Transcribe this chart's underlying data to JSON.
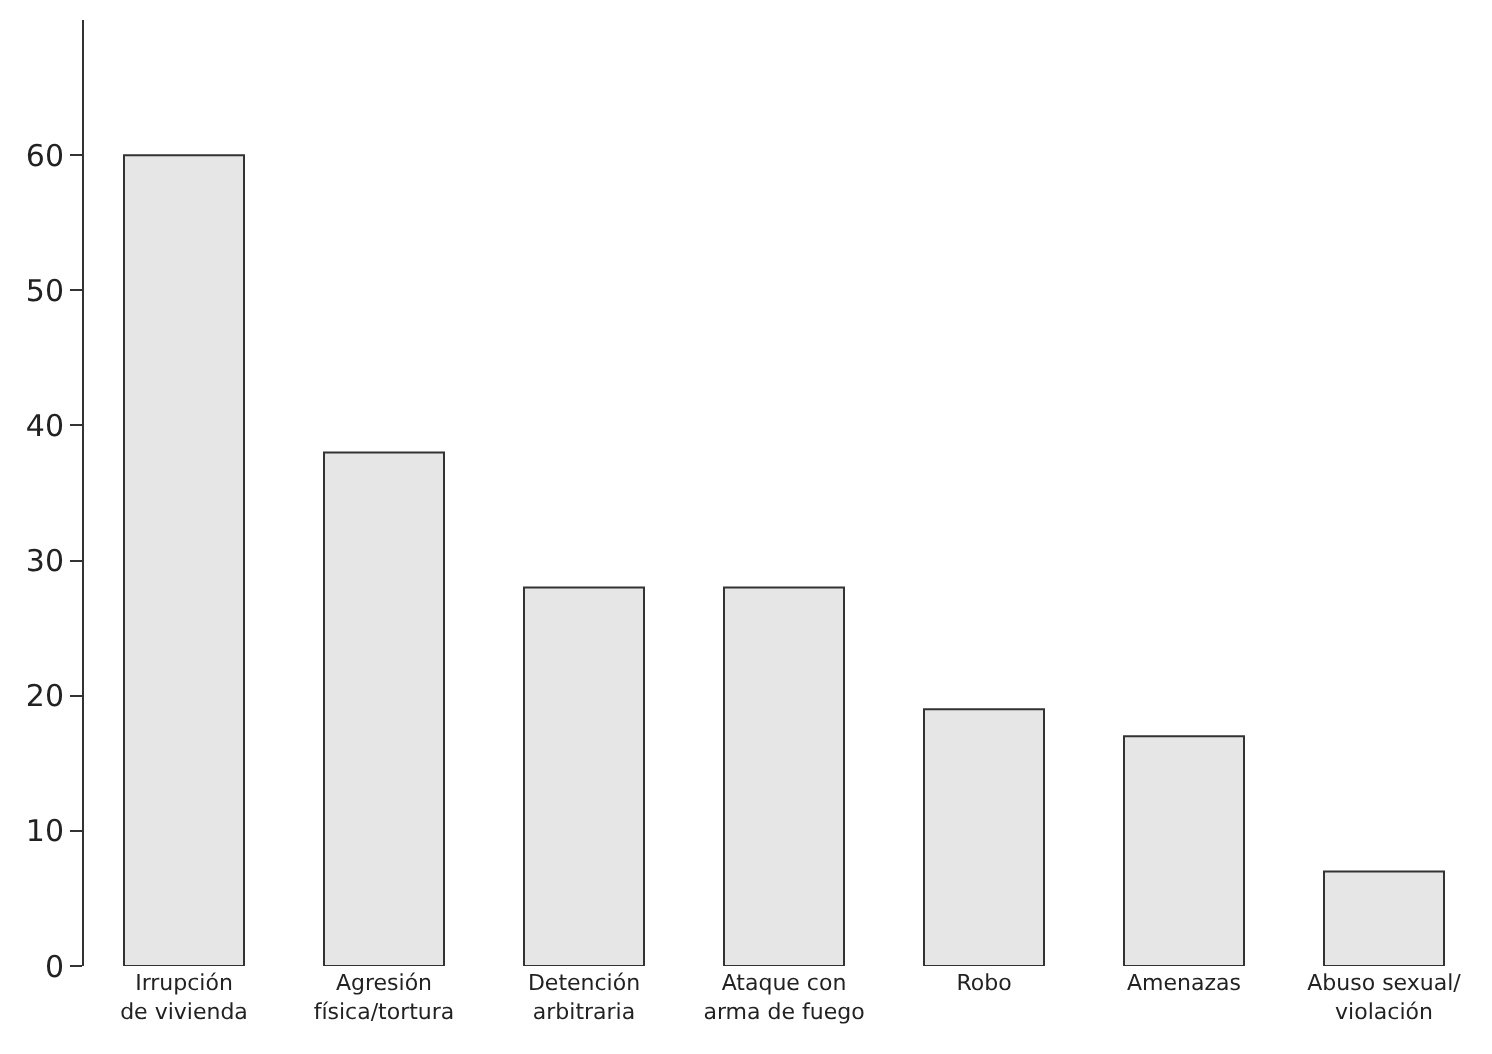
{
  "chart_data": {
    "type": "bar",
    "categories": [
      "Irrupción\nde vivienda",
      "Agresión\nfísica/tortura",
      "Detención\narbitraria",
      "Ataque con\narma de fuego",
      "Robo",
      "Amenazas",
      "Abuso sexual/\nviolación"
    ],
    "values": [
      60,
      38,
      28,
      28,
      19,
      17,
      7
    ],
    "color": "#e6e6e6",
    "ylim": [
      0,
      70
    ],
    "yticks": [
      0,
      10,
      20,
      30,
      40,
      50,
      60
    ]
  }
}
